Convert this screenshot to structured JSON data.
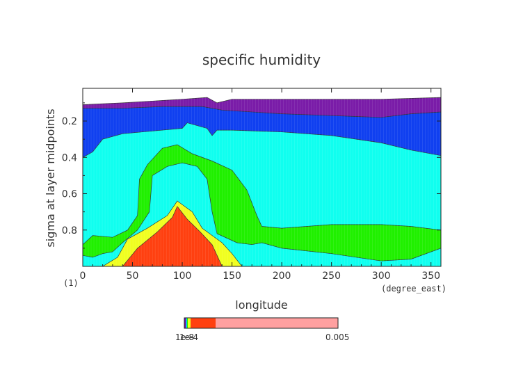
{
  "chart_data": {
    "type": "contour",
    "title": "specific humidity",
    "xlabel": "longitude",
    "ylabel": "sigma at layer midpoints",
    "x_units": "(degree_east)",
    "y_units": "(1)",
    "xlim": [
      0,
      360
    ],
    "ylim": [
      0.02,
      1.0
    ],
    "y_inverted": true,
    "x_ticks": [
      0,
      50,
      100,
      150,
      200,
      250,
      300,
      350
    ],
    "y_ticks": [
      0.2,
      0.4,
      0.6,
      0.8
    ],
    "colorbar": {
      "min_label": "1e-8",
      "mid_label": "1e-4",
      "max_label": "0.005"
    },
    "colors": {
      "level1": "#7a1ca8",
      "level2": "#1040f0",
      "level3": "#10ffef",
      "level4": "#20f000",
      "level5": "#f0ff20",
      "level6": "#ff4010",
      "colorbar_high": "#ffa0a0"
    },
    "boundaries": {
      "b1": [
        [
          0,
          0.11
        ],
        [
          40,
          0.1
        ],
        [
          70,
          0.09
        ],
        [
          100,
          0.08
        ],
        [
          125,
          0.07
        ],
        [
          135,
          0.1
        ],
        [
          150,
          0.08
        ],
        [
          200,
          0.08
        ],
        [
          250,
          0.08
        ],
        [
          300,
          0.08
        ],
        [
          360,
          0.07
        ]
      ],
      "b2": [
        [
          0,
          0.13
        ],
        [
          40,
          0.13
        ],
        [
          80,
          0.12
        ],
        [
          120,
          0.12
        ],
        [
          140,
          0.14
        ],
        [
          200,
          0.16
        ],
        [
          250,
          0.17
        ],
        [
          300,
          0.18
        ],
        [
          330,
          0.16
        ],
        [
          360,
          0.15
        ]
      ],
      "b3": [
        [
          0,
          0.4
        ],
        [
          10,
          0.37
        ],
        [
          20,
          0.3
        ],
        [
          40,
          0.27
        ],
        [
          60,
          0.26
        ],
        [
          100,
          0.24
        ],
        [
          105,
          0.21
        ],
        [
          125,
          0.24
        ],
        [
          130,
          0.28
        ],
        [
          135,
          0.25
        ],
        [
          150,
          0.25
        ],
        [
          200,
          0.26
        ],
        [
          250,
          0.28
        ],
        [
          300,
          0.32
        ],
        [
          330,
          0.36
        ],
        [
          360,
          0.39
        ]
      ],
      "b4": [
        [
          0,
          0.88
        ],
        [
          10,
          0.83
        ],
        [
          30,
          0.84
        ],
        [
          45,
          0.8
        ],
        [
          55,
          0.72
        ],
        [
          57,
          0.52
        ],
        [
          65,
          0.44
        ],
        [
          80,
          0.35
        ],
        [
          95,
          0.33
        ],
        [
          110,
          0.38
        ],
        [
          130,
          0.42
        ],
        [
          150,
          0.47
        ],
        [
          165,
          0.58
        ],
        [
          175,
          0.72
        ],
        [
          180,
          0.78
        ],
        [
          200,
          0.79
        ],
        [
          250,
          0.77
        ],
        [
          300,
          0.77
        ],
        [
          330,
          0.78
        ],
        [
          360,
          0.8
        ]
      ],
      "b5": [
        [
          0,
          0.94
        ],
        [
          10,
          0.95
        ],
        [
          20,
          0.93
        ],
        [
          30,
          0.92
        ],
        [
          40,
          0.87
        ],
        [
          55,
          0.8
        ],
        [
          67,
          0.7
        ],
        [
          70,
          0.5
        ],
        [
          85,
          0.45
        ],
        [
          100,
          0.43
        ],
        [
          115,
          0.45
        ],
        [
          125,
          0.52
        ],
        [
          130,
          0.7
        ],
        [
          135,
          0.82
        ],
        [
          155,
          0.87
        ],
        [
          170,
          0.88
        ],
        [
          180,
          0.87
        ],
        [
          200,
          0.9
        ],
        [
          250,
          0.93
        ],
        [
          300,
          0.97
        ],
        [
          330,
          0.96
        ],
        [
          360,
          0.9
        ]
      ],
      "b6": [
        [
          20,
          1.0
        ],
        [
          35,
          0.95
        ],
        [
          45,
          0.85
        ],
        [
          65,
          0.79
        ],
        [
          85,
          0.72
        ],
        [
          95,
          0.64
        ],
        [
          110,
          0.7
        ],
        [
          120,
          0.79
        ],
        [
          140,
          0.87
        ],
        [
          150,
          0.93
        ],
        [
          160,
          1.0
        ]
      ],
      "b7": [
        [
          40,
          1.0
        ],
        [
          55,
          0.9
        ],
        [
          75,
          0.81
        ],
        [
          90,
          0.73
        ],
        [
          95,
          0.67
        ],
        [
          105,
          0.74
        ],
        [
          118,
          0.81
        ],
        [
          130,
          0.88
        ],
        [
          140,
          1.0
        ]
      ]
    }
  }
}
